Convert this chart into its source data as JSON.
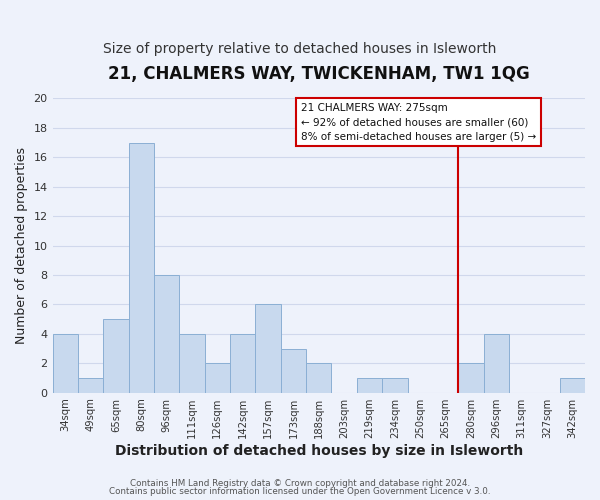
{
  "title": "21, CHALMERS WAY, TWICKENHAM, TW1 1QG",
  "subtitle": "Size of property relative to detached houses in Isleworth",
  "xlabel": "Distribution of detached houses by size in Isleworth",
  "ylabel": "Number of detached properties",
  "bar_labels": [
    "34sqm",
    "49sqm",
    "65sqm",
    "80sqm",
    "96sqm",
    "111sqm",
    "126sqm",
    "142sqm",
    "157sqm",
    "173sqm",
    "188sqm",
    "203sqm",
    "219sqm",
    "234sqm",
    "250sqm",
    "265sqm",
    "280sqm",
    "296sqm",
    "311sqm",
    "327sqm",
    "342sqm"
  ],
  "bar_values": [
    4,
    1,
    5,
    17,
    8,
    4,
    2,
    4,
    6,
    3,
    2,
    0,
    1,
    1,
    0,
    0,
    2,
    4,
    0,
    0,
    1
  ],
  "bar_color": "#c8d9ee",
  "bar_edge_color": "#8bafd4",
  "ylim": [
    0,
    20
  ],
  "yticks": [
    0,
    2,
    4,
    6,
    8,
    10,
    12,
    14,
    16,
    18,
    20
  ],
  "vline_x": 16.0,
  "vline_color": "#cc0000",
  "annotation_title": "21 CHALMERS WAY: 275sqm",
  "annotation_line1": "← 92% of detached houses are smaller (60)",
  "annotation_line2": "8% of semi-detached houses are larger (5) →",
  "annotation_box_color": "#ffffff",
  "annotation_box_edge": "#cc0000",
  "footer1": "Contains HM Land Registry data © Crown copyright and database right 2024.",
  "footer2": "Contains public sector information licensed under the Open Government Licence v 3.0.",
  "bg_color": "#eef2fb",
  "plot_bg_color": "#ffffff",
  "grid_color": "#d0d8ec",
  "title_fontsize": 12,
  "subtitle_fontsize": 10,
  "xlabel_fontsize": 10,
  "ylabel_fontsize": 9
}
